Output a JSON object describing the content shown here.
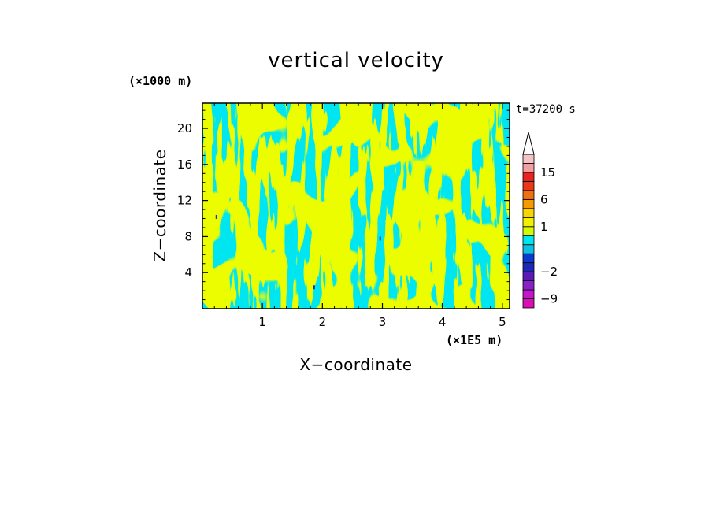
{
  "chart_data": {
    "type": "heatmap",
    "title": "vertical velocity",
    "xlabel": "X−coordinate",
    "ylabel": "Z−coordinate",
    "x_unit": "(×1E5 m)",
    "y_unit": "(×1000 m)",
    "time_label": "t=37200 s",
    "xlim": [
      0,
      5.12
    ],
    "ylim": [
      0,
      22.8
    ],
    "x_ticks": [
      1,
      2,
      3,
      4,
      5
    ],
    "y_ticks": [
      4,
      8,
      12,
      16,
      20
    ],
    "x_tick_labels": [
      "1",
      "2",
      "3",
      "4",
      "5"
    ],
    "y_tick_labels": [
      "4",
      "8",
      "12",
      "16",
      "20"
    ],
    "field_colors": {
      "positive": "#d6fb00",
      "negative": "#00e6f0",
      "strong": "#2030b0"
    },
    "colorbar": {
      "levels": [
        -12,
        -9,
        -6,
        -4,
        -2,
        -1,
        -0.5,
        0,
        0.5,
        1,
        2,
        4,
        6,
        9,
        12,
        15,
        20
      ],
      "colors": [
        "#d90fb5",
        "#c018c8",
        "#8a20c8",
        "#5a1ab8",
        "#1e28b4",
        "#0a3ad0",
        "#10c0e0",
        "#00e6f0",
        "#d6fb00",
        "#f0f000",
        "#f8d400",
        "#f59b00",
        "#f07010",
        "#e83a18",
        "#e82420",
        "#f0a0a0",
        "#f4c4c4"
      ],
      "tick_labels": [
        "15",
        "6",
        "1",
        "−2",
        "−9"
      ],
      "tick_values": [
        15,
        6,
        1,
        -2,
        -9
      ],
      "extend": "max"
    }
  }
}
